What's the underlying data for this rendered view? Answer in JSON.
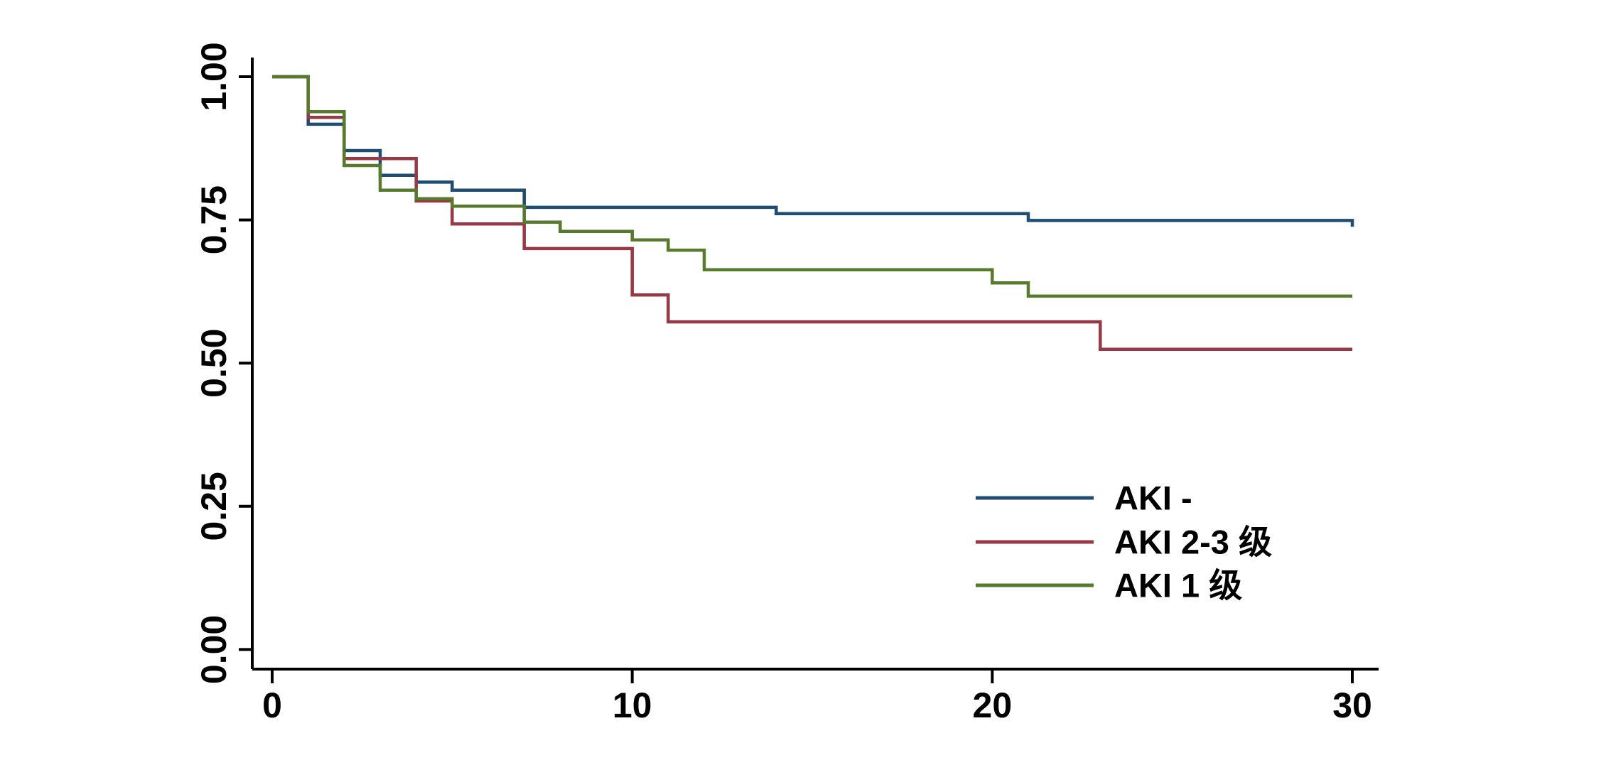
{
  "chart_data": {
    "type": "line",
    "subtype": "kaplan-meier-step-survival",
    "title": "",
    "xlabel": "",
    "ylabel": "",
    "xlim": [
      0,
      30
    ],
    "ylim": [
      0.0,
      1.0
    ],
    "grid": false,
    "legend_position": "right-middle",
    "x_ticks": [
      {
        "label": "0",
        "value": 0
      },
      {
        "label": "10",
        "value": 10
      },
      {
        "label": "20",
        "value": 20
      },
      {
        "label": "30",
        "value": 30
      }
    ],
    "y_ticks": [
      {
        "label": "1.00",
        "value": 1.0
      },
      {
        "label": "0.75",
        "value": 0.75
      },
      {
        "label": "0.50",
        "value": 0.5
      },
      {
        "label": "0.25",
        "value": 0.25
      },
      {
        "label": "0.00",
        "value": 0.0
      }
    ],
    "series": [
      {
        "name": "AKI -",
        "color": "#1e4c72",
        "steps": [
          [
            0,
            1.0
          ],
          [
            1,
            0.917
          ],
          [
            2,
            0.871
          ],
          [
            3,
            0.828
          ],
          [
            4,
            0.816
          ],
          [
            5,
            0.802
          ],
          [
            7,
            0.772
          ],
          [
            14,
            0.761
          ],
          [
            21,
            0.749
          ],
          [
            30,
            0.749
          ],
          [
            30,
            0.738
          ]
        ]
      },
      {
        "name": "AKI 2-3 级",
        "color": "#993946",
        "steps": [
          [
            0,
            1.0
          ],
          [
            1,
            0.929
          ],
          [
            2,
            0.857
          ],
          [
            4,
            0.783
          ],
          [
            5,
            0.743
          ],
          [
            7,
            0.7
          ],
          [
            10,
            0.619
          ],
          [
            11,
            0.572
          ],
          [
            23,
            0.524
          ],
          [
            30,
            0.524
          ]
        ]
      },
      {
        "name": "AKI 1 级",
        "color": "#577a2d",
        "steps": [
          [
            0,
            1.0
          ],
          [
            1,
            0.939
          ],
          [
            2,
            0.845
          ],
          [
            3,
            0.802
          ],
          [
            4,
            0.787
          ],
          [
            5,
            0.774
          ],
          [
            7,
            0.746
          ],
          [
            8,
            0.73
          ],
          [
            10,
            0.715
          ],
          [
            11,
            0.697
          ],
          [
            12,
            0.663
          ],
          [
            20,
            0.64
          ],
          [
            21,
            0.617
          ],
          [
            30,
            0.617
          ]
        ]
      }
    ],
    "legend_order": [
      0,
      1,
      2
    ]
  }
}
